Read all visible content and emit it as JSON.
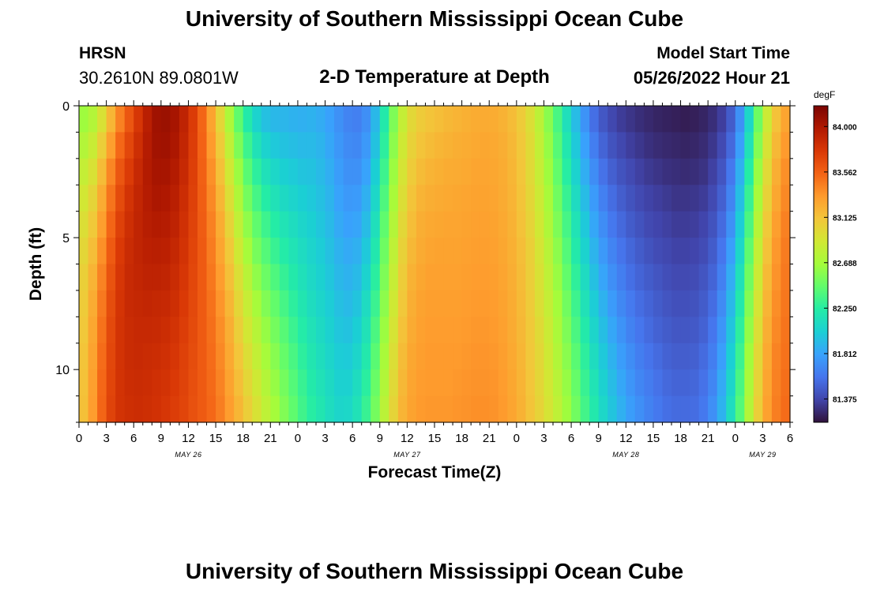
{
  "header": {
    "main_title": "University of Southern Mississippi Ocean Cube",
    "station_name": "HRSN",
    "station_coords": "30.2610N  89.0801W",
    "subtitle": "2-D Temperature at Depth",
    "model_start_label": "Model Start Time",
    "model_start_value": "05/26/2022 Hour 21"
  },
  "footer": {
    "title": "University of Southern Mississippi Ocean Cube"
  },
  "colorscale": [
    "#30123b",
    "#4145ab",
    "#4675ed",
    "#39a2fc",
    "#1bcfd4",
    "#24eca6",
    "#61fc6c",
    "#a4fc3b",
    "#d1e834",
    "#f3c63a",
    "#fe9b2d",
    "#f36315",
    "#d93806",
    "#b11901",
    "#7a0402"
  ],
  "chart_data": {
    "type": "heatmap",
    "title": "2-D Temperature at Depth",
    "xlabel": "Forecast Time(Z)",
    "ylabel": "Depth (ft)",
    "colorbar_unit": "degF",
    "colorbar_ticks": [
      "84.000",
      "83.562",
      "83.125",
      "82.688",
      "82.250",
      "81.812",
      "81.375"
    ],
    "color_range": [
      81.15,
      84.2
    ],
    "x_tick_labels": [
      "0",
      "3",
      "6",
      "9",
      "12",
      "15",
      "18",
      "21",
      "0",
      "3",
      "6",
      "9",
      "12",
      "15",
      "18",
      "21",
      "0",
      "3",
      "6",
      "9",
      "12",
      "15",
      "18",
      "21",
      "0",
      "3",
      "6"
    ],
    "x_range_hours": [
      0,
      78
    ],
    "date_labels": [
      {
        "label": "MAY 26",
        "hour": 12
      },
      {
        "label": "MAY 27",
        "hour": 36
      },
      {
        "label": "MAY 28",
        "hour": 60
      },
      {
        "label": "MAY 29",
        "hour": 75
      }
    ],
    "y_tick_labels": [
      "0",
      "5",
      "10"
    ],
    "y_ticks": [
      0,
      5,
      10
    ],
    "y_range": [
      0,
      12
    ],
    "depths": [
      0,
      1,
      2,
      3,
      4,
      5,
      6,
      7,
      8,
      9,
      10,
      11
    ],
    "hours": [
      0,
      1,
      2,
      3,
      4,
      5,
      6,
      7,
      8,
      9,
      10,
      11,
      12,
      13,
      14,
      15,
      16,
      17,
      18,
      19,
      20,
      21,
      22,
      23,
      24,
      25,
      26,
      27,
      28,
      29,
      30,
      31,
      32,
      33,
      34,
      35,
      36,
      37,
      38,
      39,
      40,
      41,
      42,
      43,
      44,
      45,
      46,
      47,
      48,
      49,
      50,
      51,
      52,
      53,
      54,
      55,
      56,
      57,
      58,
      59,
      60,
      61,
      62,
      63,
      64,
      65,
      66,
      67,
      68,
      69,
      70,
      71,
      72,
      73,
      74,
      75,
      76,
      77
    ],
    "temperature_profiles": [
      {
        "depth": 0,
        "values": [
          82.66,
          82.75,
          82.94,
          83.19,
          83.43,
          83.61,
          83.78,
          83.94,
          84.05,
          84.07,
          84.02,
          83.91,
          83.75,
          83.54,
          83.29,
          83.01,
          82.72,
          82.45,
          82.22,
          82.05,
          81.95,
          81.91,
          81.9,
          81.88,
          81.87,
          81.88,
          81.85,
          81.8,
          81.72,
          81.66,
          81.64,
          81.71,
          81.91,
          82.22,
          82.55,
          82.83,
          83.0,
          83.08,
          83.12,
          83.15,
          83.18,
          83.2,
          83.22,
          83.24,
          83.25,
          83.24,
          83.21,
          83.16,
          83.08,
          82.96,
          82.79,
          82.59,
          82.37,
          82.14,
          81.93,
          81.73,
          81.56,
          81.45,
          81.38,
          81.33,
          81.3,
          81.27,
          81.25,
          81.23,
          81.22,
          81.21,
          81.2,
          81.21,
          81.23,
          81.27,
          81.34,
          81.47,
          81.72,
          82.08,
          82.5,
          82.87,
          83.13,
          83.28
        ]
      },
      {
        "depth": 1,
        "values": [
          82.75,
          82.85,
          83.06,
          83.31,
          83.53,
          83.69,
          83.83,
          83.96,
          84.04,
          84.05,
          84.0,
          83.89,
          83.74,
          83.55,
          83.33,
          83.08,
          82.81,
          82.55,
          82.33,
          82.16,
          82.05,
          81.99,
          81.96,
          81.94,
          81.92,
          81.92,
          81.89,
          81.83,
          81.75,
          81.69,
          81.68,
          81.76,
          81.96,
          82.27,
          82.6,
          82.88,
          83.04,
          83.12,
          83.16,
          83.19,
          83.21,
          83.23,
          83.24,
          83.26,
          83.27,
          83.26,
          83.23,
          83.18,
          83.1,
          82.98,
          82.82,
          82.63,
          82.42,
          82.2,
          81.99,
          81.8,
          81.63,
          81.51,
          81.43,
          81.38,
          81.34,
          81.31,
          81.28,
          81.26,
          81.25,
          81.24,
          81.23,
          81.24,
          81.26,
          81.31,
          81.39,
          81.53,
          81.79,
          82.16,
          82.57,
          82.93,
          83.18,
          83.33
        ]
      },
      {
        "depth": 2,
        "values": [
          82.83,
          82.94,
          83.16,
          83.41,
          83.61,
          83.75,
          83.87,
          83.97,
          84.02,
          84.02,
          83.97,
          83.87,
          83.73,
          83.56,
          83.37,
          83.14,
          82.89,
          82.65,
          82.43,
          82.27,
          82.15,
          82.08,
          82.03,
          82.0,
          81.97,
          81.96,
          81.92,
          81.86,
          81.78,
          81.72,
          81.72,
          81.81,
          82.02,
          82.33,
          82.65,
          82.92,
          83.08,
          83.16,
          83.2,
          83.22,
          83.24,
          83.25,
          83.26,
          83.28,
          83.28,
          83.27,
          83.24,
          83.19,
          83.11,
          82.99,
          82.84,
          82.66,
          82.46,
          82.25,
          82.05,
          81.86,
          81.7,
          81.57,
          81.49,
          81.43,
          81.39,
          81.35,
          81.32,
          81.3,
          81.28,
          81.27,
          81.26,
          81.27,
          81.29,
          81.35,
          81.44,
          81.6,
          81.87,
          82.24,
          82.64,
          82.99,
          83.23,
          83.37
        ]
      },
      {
        "depth": 3,
        "values": [
          82.9,
          83.02,
          83.24,
          83.48,
          83.67,
          83.8,
          83.89,
          83.96,
          84.0,
          83.99,
          83.94,
          83.84,
          83.72,
          83.57,
          83.4,
          83.19,
          82.96,
          82.73,
          82.52,
          82.36,
          82.24,
          82.16,
          82.1,
          82.06,
          82.02,
          81.99,
          81.95,
          81.89,
          81.81,
          81.76,
          81.77,
          81.87,
          82.08,
          82.39,
          82.7,
          82.96,
          83.12,
          83.2,
          83.23,
          83.25,
          83.26,
          83.27,
          83.28,
          83.29,
          83.29,
          83.28,
          83.25,
          83.2,
          83.12,
          83.01,
          82.87,
          82.7,
          82.51,
          82.31,
          82.11,
          81.93,
          81.77,
          81.64,
          81.55,
          81.48,
          81.43,
          81.39,
          81.36,
          81.34,
          81.32,
          81.3,
          81.3,
          81.31,
          81.33,
          81.39,
          81.49,
          81.66,
          81.94,
          82.31,
          82.7,
          83.04,
          83.27,
          83.4
        ]
      },
      {
        "depth": 4,
        "values": [
          82.96,
          83.09,
          83.31,
          83.54,
          83.72,
          83.83,
          83.9,
          83.95,
          83.97,
          83.96,
          83.91,
          83.82,
          83.71,
          83.58,
          83.43,
          83.24,
          83.03,
          82.81,
          82.61,
          82.45,
          82.33,
          82.24,
          82.17,
          82.12,
          82.07,
          82.03,
          81.98,
          81.92,
          81.84,
          81.8,
          81.82,
          81.93,
          82.14,
          82.45,
          82.75,
          83.0,
          83.15,
          83.23,
          83.26,
          83.27,
          83.28,
          83.28,
          83.29,
          83.3,
          83.3,
          83.29,
          83.26,
          83.21,
          83.13,
          83.03,
          82.89,
          82.73,
          82.55,
          82.36,
          82.17,
          81.99,
          81.83,
          81.7,
          81.6,
          81.53,
          81.47,
          81.43,
          81.39,
          81.37,
          81.35,
          81.33,
          81.33,
          81.34,
          81.37,
          81.43,
          81.54,
          81.72,
          82.01,
          82.38,
          82.76,
          83.09,
          83.31,
          83.43
        ]
      },
      {
        "depth": 5,
        "values": [
          83.01,
          83.15,
          83.37,
          83.59,
          83.76,
          83.85,
          83.9,
          83.93,
          83.94,
          83.93,
          83.88,
          83.8,
          83.7,
          83.59,
          83.45,
          83.28,
          83.09,
          82.88,
          82.69,
          82.53,
          82.41,
          82.31,
          82.23,
          82.17,
          82.11,
          82.06,
          82.01,
          81.95,
          81.88,
          81.84,
          81.87,
          81.99,
          82.2,
          82.5,
          82.8,
          83.04,
          83.18,
          83.25,
          83.28,
          83.29,
          83.29,
          83.29,
          83.3,
          83.31,
          83.31,
          83.3,
          83.27,
          83.22,
          83.15,
          83.05,
          82.92,
          82.77,
          82.6,
          82.41,
          82.22,
          82.05,
          81.89,
          81.76,
          81.66,
          81.58,
          81.52,
          81.47,
          81.43,
          81.4,
          81.38,
          81.36,
          81.36,
          81.37,
          81.4,
          81.47,
          81.59,
          81.79,
          82.08,
          82.45,
          82.82,
          83.13,
          83.34,
          83.45
        ]
      },
      {
        "depth": 6,
        "values": [
          83.05,
          83.2,
          83.42,
          83.63,
          83.78,
          83.86,
          83.89,
          83.91,
          83.91,
          83.9,
          83.85,
          83.78,
          83.69,
          83.59,
          83.47,
          83.32,
          83.14,
          82.95,
          82.77,
          82.61,
          82.49,
          82.39,
          82.3,
          82.22,
          82.15,
          82.09,
          82.04,
          81.98,
          81.91,
          81.88,
          81.92,
          82.05,
          82.26,
          82.55,
          82.84,
          83.07,
          83.21,
          83.27,
          83.3,
          83.3,
          83.3,
          83.3,
          83.31,
          83.32,
          83.32,
          83.31,
          83.28,
          83.23,
          83.16,
          83.06,
          82.94,
          82.8,
          82.64,
          82.46,
          82.28,
          82.11,
          81.95,
          81.82,
          81.71,
          81.63,
          81.56,
          81.51,
          81.47,
          81.44,
          81.41,
          81.39,
          81.39,
          81.4,
          81.44,
          81.51,
          81.64,
          81.85,
          82.15,
          82.51,
          82.87,
          83.17,
          83.36,
          83.46
        ]
      },
      {
        "depth": 7,
        "values": [
          83.08,
          83.24,
          83.46,
          83.66,
          83.79,
          83.86,
          83.88,
          83.89,
          83.88,
          83.87,
          83.83,
          83.76,
          83.68,
          83.59,
          83.49,
          83.35,
          83.19,
          83.01,
          82.84,
          82.69,
          82.56,
          82.46,
          82.36,
          82.27,
          82.19,
          82.12,
          82.07,
          82.01,
          81.95,
          81.92,
          81.97,
          82.11,
          82.32,
          82.6,
          82.88,
          83.1,
          83.23,
          83.29,
          83.31,
          83.31,
          83.31,
          83.31,
          83.32,
          83.33,
          83.33,
          83.32,
          83.29,
          83.24,
          83.17,
          83.08,
          82.96,
          82.83,
          82.68,
          82.51,
          82.33,
          82.16,
          82.01,
          81.88,
          81.77,
          81.68,
          81.61,
          81.55,
          81.51,
          81.47,
          81.44,
          81.42,
          81.42,
          81.43,
          81.47,
          81.55,
          81.69,
          81.91,
          82.21,
          82.57,
          82.92,
          83.2,
          83.38,
          83.47
        ]
      },
      {
        "depth": 8,
        "values": [
          83.1,
          83.27,
          83.49,
          83.68,
          83.8,
          83.85,
          83.87,
          83.87,
          83.86,
          83.84,
          83.8,
          83.74,
          83.67,
          83.59,
          83.5,
          83.38,
          83.23,
          83.06,
          82.9,
          82.76,
          82.63,
          82.52,
          82.42,
          82.32,
          82.23,
          82.16,
          82.1,
          82.04,
          81.98,
          81.96,
          82.02,
          82.16,
          82.38,
          82.65,
          82.92,
          83.13,
          83.25,
          83.3,
          83.32,
          83.32,
          83.32,
          83.32,
          83.33,
          83.34,
          83.34,
          83.33,
          83.3,
          83.25,
          83.18,
          83.09,
          82.98,
          82.86,
          82.71,
          82.55,
          82.38,
          82.22,
          82.07,
          81.94,
          81.83,
          81.73,
          81.65,
          81.59,
          81.54,
          81.5,
          81.47,
          81.45,
          81.45,
          81.46,
          81.5,
          81.59,
          81.74,
          81.97,
          82.27,
          82.62,
          82.96,
          83.23,
          83.4,
          83.48
        ]
      },
      {
        "depth": 9,
        "values": [
          83.12,
          83.29,
          83.51,
          83.69,
          83.8,
          83.85,
          83.86,
          83.85,
          83.84,
          83.82,
          83.78,
          83.72,
          83.66,
          83.59,
          83.51,
          83.4,
          83.26,
          83.11,
          82.96,
          82.82,
          82.69,
          82.58,
          82.47,
          82.37,
          82.27,
          82.19,
          82.13,
          82.07,
          82.01,
          82.0,
          82.07,
          82.21,
          82.43,
          82.7,
          82.96,
          83.16,
          83.27,
          83.31,
          83.33,
          83.33,
          83.33,
          83.33,
          83.34,
          83.35,
          83.35,
          83.34,
          83.31,
          83.26,
          83.19,
          83.1,
          83.0,
          82.88,
          82.74,
          82.59,
          82.43,
          82.27,
          82.12,
          81.99,
          81.88,
          81.78,
          81.7,
          81.63,
          81.58,
          81.54,
          81.5,
          81.48,
          81.48,
          81.49,
          81.54,
          81.63,
          81.79,
          82.02,
          82.32,
          82.67,
          83.0,
          83.26,
          83.42,
          83.49
        ]
      },
      {
        "depth": 10,
        "values": [
          83.13,
          83.31,
          83.53,
          83.7,
          83.8,
          83.84,
          83.85,
          83.84,
          83.82,
          83.8,
          83.76,
          83.71,
          83.65,
          83.59,
          83.52,
          83.42,
          83.29,
          83.15,
          83.01,
          82.88,
          82.75,
          82.63,
          82.52,
          82.41,
          82.31,
          82.22,
          82.16,
          82.1,
          82.04,
          82.04,
          82.12,
          82.26,
          82.48,
          82.74,
          82.99,
          83.18,
          83.28,
          83.32,
          83.33,
          83.33,
          83.33,
          83.34,
          83.35,
          83.36,
          83.36,
          83.35,
          83.32,
          83.27,
          83.2,
          83.11,
          83.01,
          82.9,
          82.77,
          82.63,
          82.47,
          82.31,
          82.17,
          82.04,
          81.93,
          81.83,
          81.74,
          81.67,
          81.62,
          81.57,
          81.53,
          81.51,
          81.51,
          81.52,
          81.57,
          81.67,
          81.84,
          82.07,
          82.37,
          82.71,
          83.03,
          83.28,
          83.43,
          83.5
        ]
      },
      {
        "depth": 11,
        "values": [
          83.14,
          83.32,
          83.54,
          83.71,
          83.8,
          83.83,
          83.84,
          83.83,
          83.81,
          83.78,
          83.74,
          83.7,
          83.64,
          83.59,
          83.53,
          83.44,
          83.32,
          83.19,
          83.06,
          82.93,
          82.8,
          82.68,
          82.56,
          82.45,
          82.34,
          82.25,
          82.19,
          82.12,
          82.07,
          82.08,
          82.16,
          82.31,
          82.52,
          82.78,
          83.02,
          83.2,
          83.29,
          83.33,
          83.34,
          83.34,
          83.34,
          83.35,
          83.36,
          83.37,
          83.37,
          83.36,
          83.33,
          83.28,
          83.21,
          83.12,
          83.03,
          82.92,
          82.8,
          82.66,
          82.51,
          82.35,
          82.21,
          82.08,
          81.97,
          81.87,
          81.78,
          81.71,
          81.65,
          81.6,
          81.56,
          81.54,
          81.54,
          81.55,
          81.6,
          81.71,
          81.88,
          82.12,
          82.41,
          82.75,
          83.06,
          83.3,
          83.44,
          83.51
        ]
      }
    ]
  }
}
